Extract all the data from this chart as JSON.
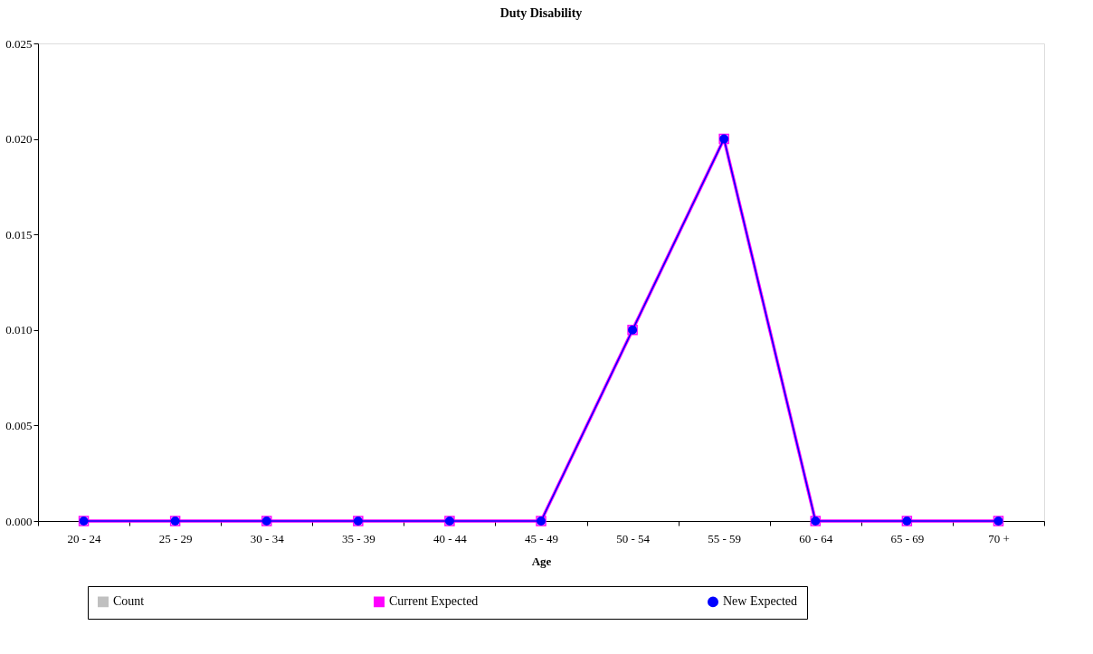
{
  "chart_data": {
    "type": "line",
    "title": "Duty Disability",
    "xlabel": "Age",
    "categories": [
      "20 - 24",
      "25 - 29",
      "30 - 34",
      "35 - 39",
      "40 - 44",
      "45 - 49",
      "50 - 54",
      "55 - 59",
      "60 - 64",
      "65 - 69",
      "70 +"
    ],
    "series": [
      {
        "name": "Count",
        "type": "bar",
        "color": "#c0c0c0",
        "values": [
          null,
          null,
          null,
          null,
          null,
          null,
          null,
          null,
          null,
          null,
          null
        ]
      },
      {
        "name": "Current Expected",
        "color": "#ff00ff",
        "marker": "square",
        "values": [
          0,
          0,
          0,
          0,
          0,
          0,
          0.01,
          0.02,
          0,
          0,
          0
        ]
      },
      {
        "name": "New Expected",
        "color": "#0000ff",
        "marker": "circle",
        "values": [
          0,
          0,
          0,
          0,
          0,
          0,
          0.01,
          0.02,
          0,
          0,
          0
        ]
      }
    ],
    "ylim": [
      0,
      0.025
    ],
    "yticks": [
      {
        "value": 0,
        "label": "0.000"
      },
      {
        "value": 0.005,
        "label": "0.005"
      },
      {
        "value": 0.01,
        "label": "0.010"
      },
      {
        "value": 0.015,
        "label": "0.015"
      },
      {
        "value": 0.02,
        "label": "0.020"
      },
      {
        "value": 0.025,
        "label": "0.025"
      }
    ],
    "grid": false,
    "legend": "bottom",
    "line_style": "solid"
  }
}
